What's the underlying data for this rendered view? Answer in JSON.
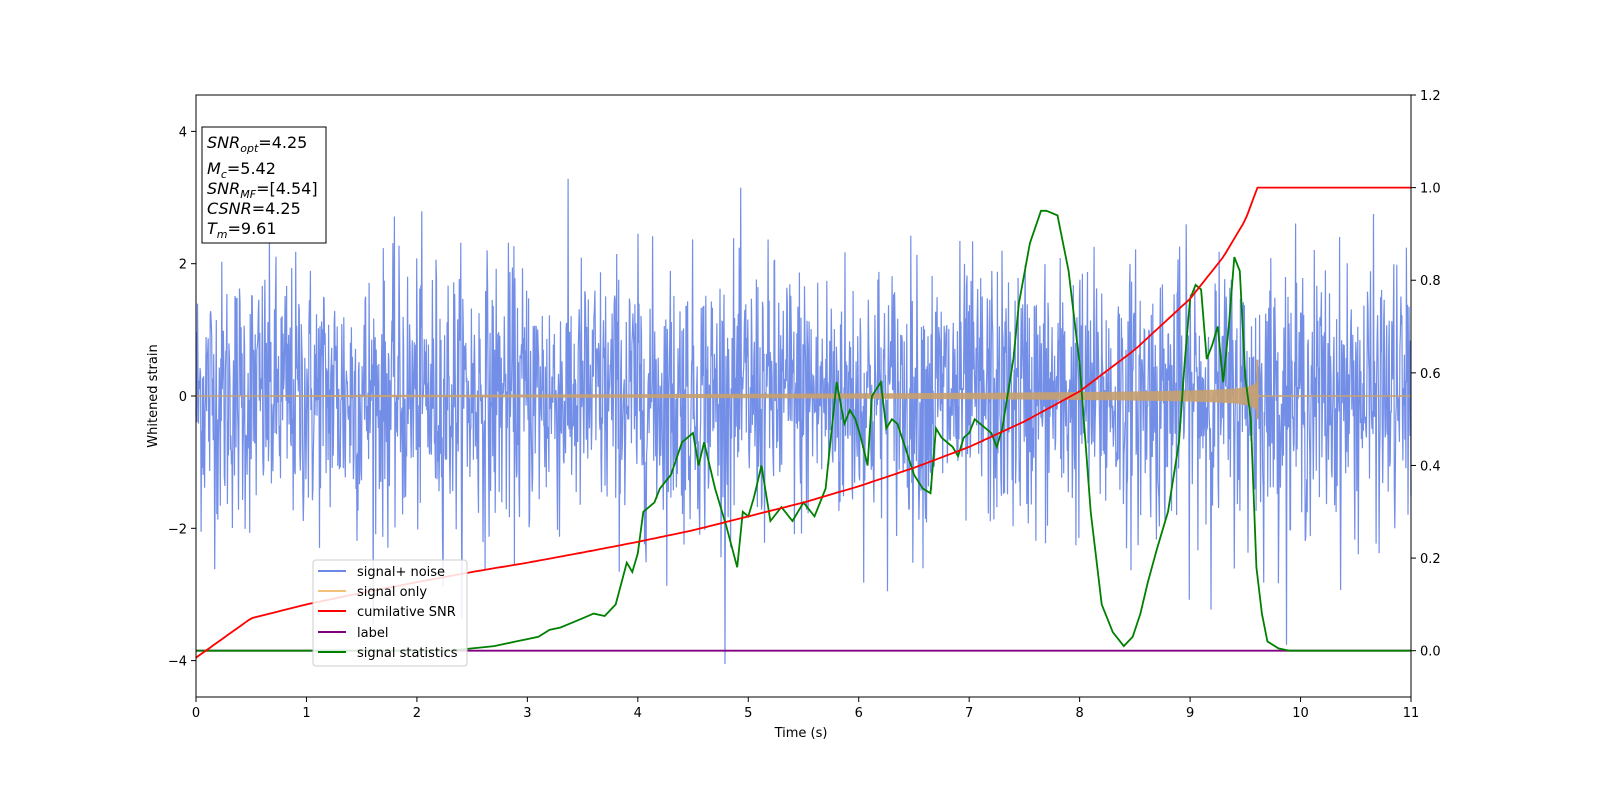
{
  "chart_data": {
    "type": "line",
    "xlabel": "Time (s)",
    "ylabel_left": "Whitened strain",
    "ylabel_right": "",
    "xlim": [
      0,
      11
    ],
    "ylim_left": [
      -4.55,
      4.55
    ],
    "ylim_right": [
      -0.1,
      1.2
    ],
    "x_ticks": [
      "0",
      "1",
      "2",
      "3",
      "4",
      "5",
      "6",
      "7",
      "8",
      "9",
      "10",
      "11"
    ],
    "y_ticks_left": [
      "−4",
      "−2",
      "0",
      "2",
      "4"
    ],
    "y_ticks_right": [
      "0.0",
      "0.2",
      "0.4",
      "0.6",
      "0.8",
      "1.0",
      "1.2"
    ],
    "grid": false,
    "info_box": {
      "snr_opt": {
        "base": "SNR",
        "sub": "opt",
        "value": "=4.25"
      },
      "mc": {
        "base": "M",
        "sub": "c",
        "value": "=5.42"
      },
      "snr_mf": {
        "base": "SNR",
        "sub": "MF",
        "value": "=[4.54]"
      },
      "csnr": {
        "base": "CSNR",
        "sub": "",
        "value": "=4.25"
      },
      "tm": {
        "base": "T",
        "sub": "m",
        "value": "=9.61"
      }
    },
    "legend": {
      "placement": "lower-left",
      "entries": [
        {
          "label": "signal+ noise",
          "color": "#6b88e6"
        },
        {
          "label": "signal only",
          "color": "#f5c07a"
        },
        {
          "label": "cumilative SNR",
          "color": "#ff0000"
        },
        {
          "label": "label",
          "color": "#800080"
        },
        {
          "label": "signal statistics",
          "color": "#008000"
        }
      ]
    },
    "series": [
      {
        "name": "signal+ noise",
        "axis": "left",
        "color": "#6b88e6",
        "description_values": {
          "noise_std": 1.0,
          "typical_range": [
            -3,
            3
          ]
        }
      },
      {
        "name": "signal only",
        "axis": "left",
        "color": "#c8a06e",
        "chirp_end_time": 9.61,
        "peak_amplitude": 0.55
      },
      {
        "name": "cumilative SNR",
        "axis": "right",
        "color": "#ff0000",
        "x": [
          0,
          0.5,
          1,
          1.5,
          2,
          2.5,
          3,
          3.5,
          4,
          4.5,
          5,
          5.5,
          6,
          6.5,
          7,
          7.5,
          8,
          8.5,
          9,
          9.3,
          9.5,
          9.61,
          11
        ],
        "y": [
          -0.015,
          0.07,
          0.1,
          0.125,
          0.148,
          0.17,
          0.19,
          0.212,
          0.235,
          0.26,
          0.29,
          0.32,
          0.355,
          0.395,
          0.44,
          0.495,
          0.56,
          0.65,
          0.76,
          0.85,
          0.93,
          1.0,
          1.0
        ]
      },
      {
        "name": "label",
        "axis": "right",
        "color": "#800080",
        "x": [
          0,
          11
        ],
        "y": [
          0.0,
          0.0
        ]
      },
      {
        "name": "signal statistics",
        "axis": "right",
        "color": "#008000",
        "x": [
          0,
          2.3,
          2.5,
          2.7,
          2.9,
          3.0,
          3.1,
          3.2,
          3.3,
          3.4,
          3.5,
          3.6,
          3.7,
          3.8,
          3.9,
          3.95,
          4.0,
          4.05,
          4.15,
          4.2,
          4.3,
          4.4,
          4.5,
          4.55,
          4.6,
          4.7,
          4.8,
          4.9,
          4.95,
          5.0,
          5.05,
          5.12,
          5.2,
          5.3,
          5.4,
          5.5,
          5.6,
          5.7,
          5.8,
          5.87,
          5.92,
          5.97,
          6.02,
          6.08,
          6.12,
          6.2,
          6.25,
          6.3,
          6.35,
          6.42,
          6.5,
          6.58,
          6.65,
          6.7,
          6.75,
          6.85,
          6.9,
          6.95,
          7.0,
          7.05,
          7.1,
          7.2,
          7.25,
          7.3,
          7.4,
          7.45,
          7.55,
          7.65,
          7.7,
          7.8,
          7.9,
          8.0,
          8.1,
          8.2,
          8.3,
          8.4,
          8.48,
          8.55,
          8.62,
          8.7,
          8.8,
          8.9,
          8.95,
          9.0,
          9.05,
          9.1,
          9.15,
          9.2,
          9.25,
          9.3,
          9.35,
          9.4,
          9.45,
          9.5,
          9.55,
          9.6,
          9.65,
          9.7,
          9.8,
          9.9,
          10.0,
          10.5,
          11.0
        ],
        "y": [
          0.0,
          0.0,
          0.005,
          0.01,
          0.02,
          0.025,
          0.03,
          0.045,
          0.05,
          0.06,
          0.07,
          0.08,
          0.075,
          0.1,
          0.19,
          0.17,
          0.21,
          0.3,
          0.32,
          0.35,
          0.38,
          0.45,
          0.47,
          0.4,
          0.45,
          0.35,
          0.27,
          0.18,
          0.3,
          0.29,
          0.33,
          0.4,
          0.28,
          0.31,
          0.28,
          0.32,
          0.29,
          0.35,
          0.58,
          0.49,
          0.52,
          0.5,
          0.46,
          0.4,
          0.55,
          0.58,
          0.48,
          0.5,
          0.49,
          0.44,
          0.38,
          0.35,
          0.34,
          0.48,
          0.46,
          0.44,
          0.42,
          0.46,
          0.47,
          0.5,
          0.49,
          0.47,
          0.44,
          0.48,
          0.63,
          0.75,
          0.88,
          0.95,
          0.95,
          0.94,
          0.82,
          0.62,
          0.3,
          0.1,
          0.04,
          0.01,
          0.03,
          0.08,
          0.15,
          0.22,
          0.3,
          0.45,
          0.62,
          0.76,
          0.79,
          0.78,
          0.63,
          0.66,
          0.7,
          0.58,
          0.7,
          0.85,
          0.82,
          0.59,
          0.5,
          0.18,
          0.08,
          0.02,
          0.005,
          0.0,
          0.0,
          0.0,
          0.0
        ]
      }
    ]
  }
}
